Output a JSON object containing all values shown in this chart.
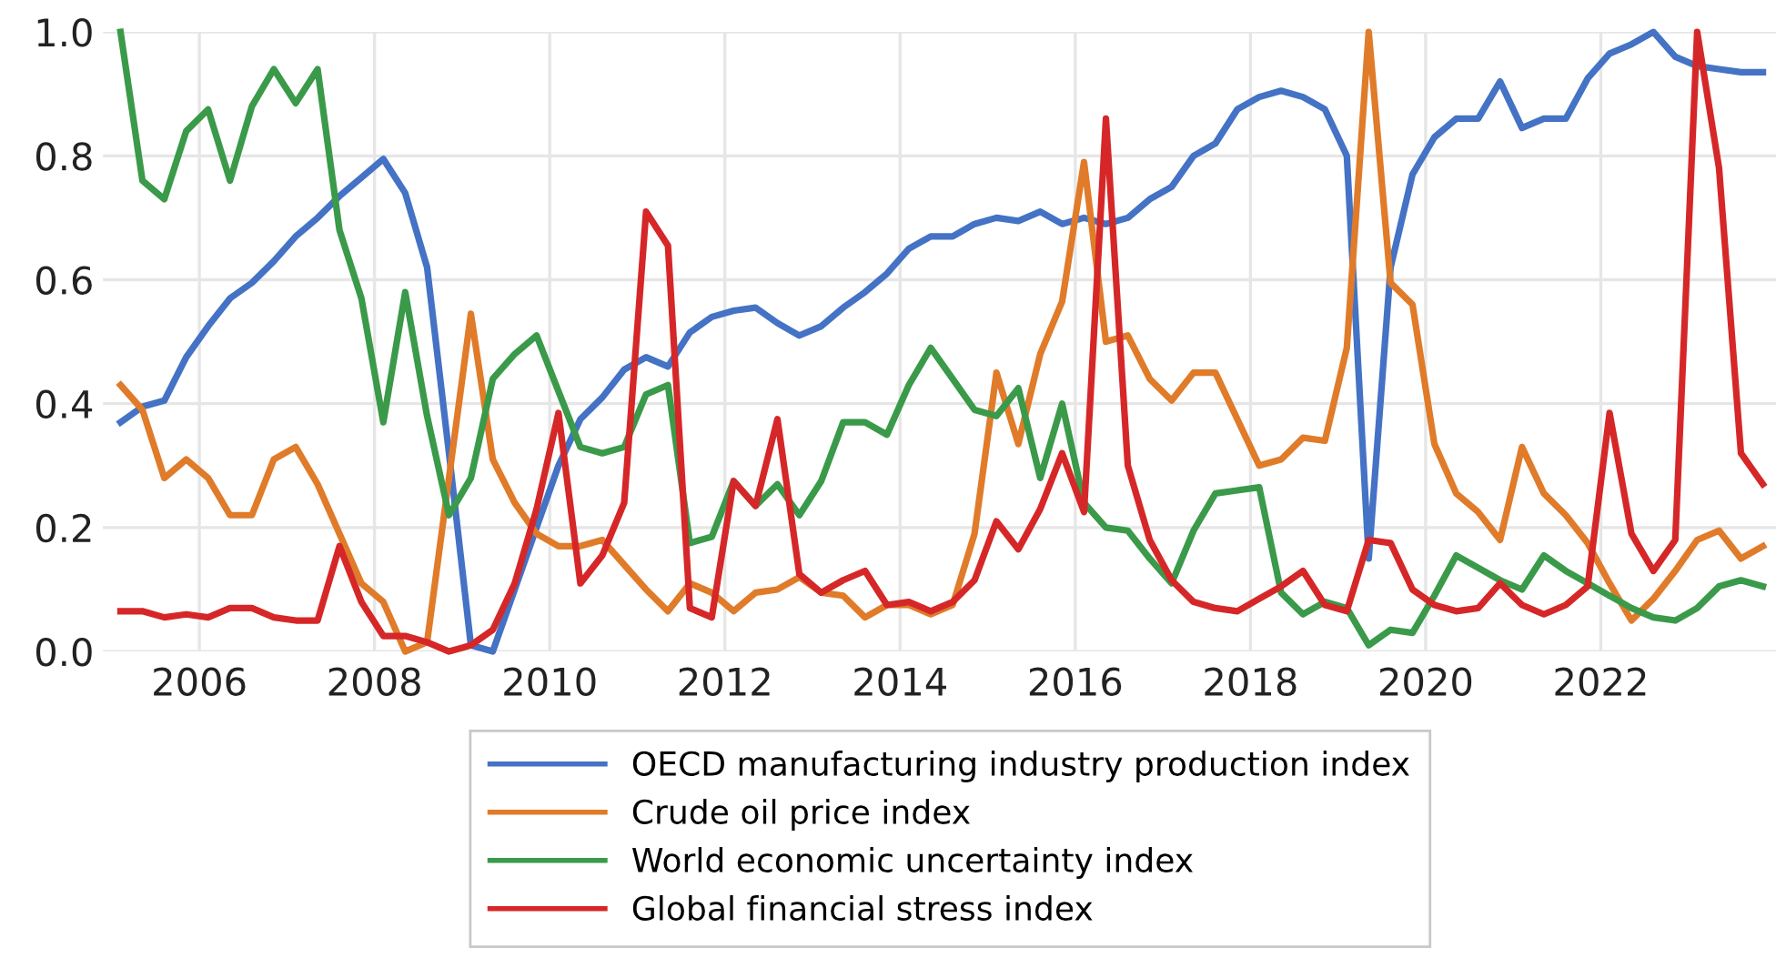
{
  "chart_data": {
    "type": "line",
    "x": [
      2005.1,
      2005.35,
      2005.6,
      2005.85,
      2006.1,
      2006.35,
      2006.6,
      2006.85,
      2007.1,
      2007.35,
      2007.6,
      2007.85,
      2008.1,
      2008.35,
      2008.6,
      2008.85,
      2009.1,
      2009.35,
      2009.6,
      2009.85,
      2010.1,
      2010.35,
      2010.6,
      2010.85,
      2011.1,
      2011.35,
      2011.6,
      2011.85,
      2012.1,
      2012.35,
      2012.6,
      2012.85,
      2013.1,
      2013.35,
      2013.6,
      2013.85,
      2014.1,
      2014.35,
      2014.6,
      2014.85,
      2015.1,
      2015.35,
      2015.6,
      2015.85,
      2016.1,
      2016.35,
      2016.6,
      2016.85,
      2017.1,
      2017.35,
      2017.6,
      2017.85,
      2018.1,
      2018.35,
      2018.6,
      2018.85,
      2019.1,
      2019.35,
      2019.6,
      2019.85,
      2020.1,
      2020.35,
      2020.6,
      2020.85,
      2021.1,
      2021.35,
      2021.6,
      2021.85,
      2022.1,
      2022.35,
      2022.6,
      2022.85,
      2023.1,
      2023.35,
      2023.6,
      2023.85
    ],
    "series": [
      {
        "name": "OECD manufacturing industry production index",
        "color": "#4472c4",
        "values": [
          0.37,
          0.395,
          0.405,
          0.475,
          0.525,
          0.57,
          0.595,
          0.63,
          0.67,
          0.7,
          0.735,
          0.765,
          0.795,
          0.74,
          0.62,
          0.32,
          0.01,
          0.0,
          0.1,
          0.2,
          0.3,
          0.375,
          0.41,
          0.455,
          0.475,
          0.46,
          0.515,
          0.54,
          0.55,
          0.555,
          0.53,
          0.51,
          0.525,
          0.555,
          0.58,
          0.61,
          0.65,
          0.67,
          0.67,
          0.69,
          0.7,
          0.695,
          0.71,
          0.69,
          0.7,
          0.69,
          0.7,
          0.73,
          0.75,
          0.8,
          0.82,
          0.875,
          0.895,
          0.905,
          0.895,
          0.875,
          0.8,
          0.15,
          0.62,
          0.77,
          0.83,
          0.86,
          0.86,
          0.92,
          0.845,
          0.86,
          0.86,
          0.925,
          0.965,
          0.98,
          1.0,
          0.96,
          0.945,
          0.94,
          0.935,
          0.935
        ]
      },
      {
        "name": "Crude oil price index",
        "color": "#e07b2a",
        "values": [
          0.43,
          0.39,
          0.28,
          0.31,
          0.28,
          0.22,
          0.22,
          0.31,
          0.33,
          0.27,
          0.19,
          0.11,
          0.08,
          0.0,
          0.015,
          0.28,
          0.545,
          0.31,
          0.24,
          0.19,
          0.17,
          0.17,
          0.18,
          0.14,
          0.1,
          0.065,
          0.11,
          0.095,
          0.065,
          0.095,
          0.1,
          0.12,
          0.095,
          0.09,
          0.055,
          0.075,
          0.075,
          0.06,
          0.075,
          0.19,
          0.45,
          0.335,
          0.48,
          0.565,
          0.79,
          0.5,
          0.51,
          0.44,
          0.405,
          0.45,
          0.45,
          0.375,
          0.3,
          0.31,
          0.345,
          0.34,
          0.49,
          1.0,
          0.595,
          0.56,
          0.335,
          0.255,
          0.225,
          0.18,
          0.33,
          0.255,
          0.22,
          0.175,
          0.11,
          0.05,
          0.085,
          0.13,
          0.18,
          0.195,
          0.15,
          0.17
        ]
      },
      {
        "name": "World economic uncertainty index",
        "color": "#3a9a4a",
        "values": [
          1.0,
          0.76,
          0.73,
          0.84,
          0.875,
          0.76,
          0.88,
          0.94,
          0.885,
          0.94,
          0.68,
          0.57,
          0.37,
          0.58,
          0.38,
          0.22,
          0.28,
          0.44,
          0.48,
          0.51,
          0.42,
          0.33,
          0.32,
          0.33,
          0.415,
          0.43,
          0.175,
          0.185,
          0.275,
          0.235,
          0.27,
          0.22,
          0.275,
          0.37,
          0.37,
          0.35,
          0.43,
          0.49,
          0.44,
          0.39,
          0.38,
          0.425,
          0.28,
          0.4,
          0.24,
          0.2,
          0.195,
          0.15,
          0.11,
          0.195,
          0.255,
          0.26,
          0.265,
          0.095,
          0.06,
          0.08,
          0.07,
          0.01,
          0.035,
          0.03,
          0.09,
          0.155,
          0.135,
          0.115,
          0.1,
          0.155,
          0.13,
          0.11,
          0.09,
          0.07,
          0.055,
          0.05,
          0.07,
          0.105,
          0.115,
          0.105
        ]
      },
      {
        "name": "Global financial stress index",
        "color": "#d62728",
        "values": [
          0.065,
          0.065,
          0.055,
          0.06,
          0.055,
          0.07,
          0.07,
          0.055,
          0.05,
          0.05,
          0.17,
          0.08,
          0.025,
          0.025,
          0.015,
          0.0,
          0.01,
          0.035,
          0.11,
          0.23,
          0.385,
          0.11,
          0.155,
          0.24,
          0.71,
          0.655,
          0.07,
          0.055,
          0.275,
          0.235,
          0.375,
          0.125,
          0.095,
          0.115,
          0.13,
          0.075,
          0.08,
          0.065,
          0.08,
          0.115,
          0.21,
          0.165,
          0.23,
          0.32,
          0.225,
          0.86,
          0.3,
          0.18,
          0.115,
          0.08,
          0.07,
          0.065,
          0.085,
          0.105,
          0.13,
          0.075,
          0.065,
          0.18,
          0.175,
          0.1,
          0.075,
          0.065,
          0.07,
          0.11,
          0.075,
          0.06,
          0.075,
          0.105,
          0.385,
          0.19,
          0.13,
          0.18,
          1.0,
          0.78,
          0.32,
          0.27
        ]
      }
    ],
    "xlim": [
      2004.9,
      2024.0
    ],
    "xticks": [
      2006,
      2008,
      2010,
      2012,
      2014,
      2016,
      2018,
      2020,
      2022
    ],
    "ylim": [
      0,
      1
    ],
    "yticks": [
      {
        "value": 0,
        "label": "0.0"
      },
      {
        "value": 0.2,
        "label": "0.2"
      },
      {
        "value": 0.4,
        "label": "0.4"
      },
      {
        "value": 0.6,
        "label": "0.6"
      },
      {
        "value": 0.8,
        "label": "0.8"
      },
      {
        "value": 1,
        "label": "1.0"
      }
    ],
    "grid": true,
    "legend": "bottom",
    "line_style": "solid"
  }
}
